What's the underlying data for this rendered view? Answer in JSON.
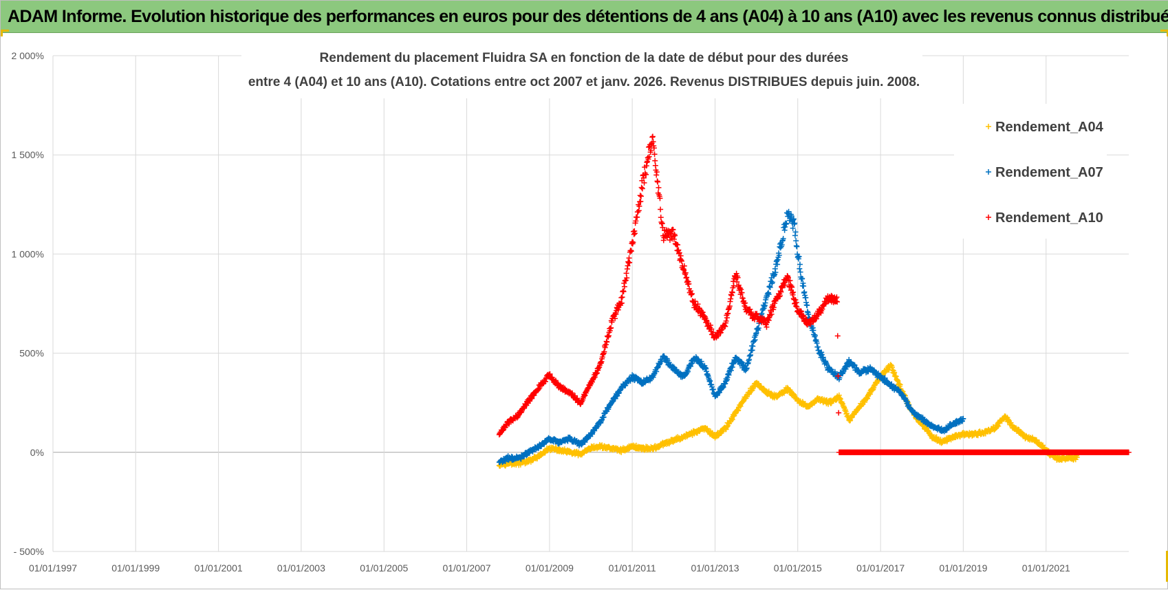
{
  "banner": {
    "title": "ADAM Informe. Evolution historique des performances en euros pour des détentions de 4 ans (A04) à 10 ans (A10) avec les revenus connus distribués",
    "color": "#8cc87e"
  },
  "chart_data": {
    "type": "scatter",
    "title_line1": "Rendement du placement Fluidra SA en fonction de la date de début pour des durées",
    "title_line2": "entre 4 (A04) et 10 ans (A10). Cotations entre oct 2007 et janv. 2026. Revenus DISTRIBUES depuis juin. 2008.",
    "xlabel": "",
    "ylabel": "",
    "x_range": [
      "01/01/1997",
      "01/01/2023"
    ],
    "ylim": [
      -500,
      2000
    ],
    "y_ticks": [
      {
        "value": 2000,
        "label": "2 000%"
      },
      {
        "value": 1500,
        "label": "1 500%"
      },
      {
        "value": 1000,
        "label": "1 000%"
      },
      {
        "value": 500,
        "label": "500%"
      },
      {
        "value": 0,
        "label": "0%"
      },
      {
        "value": -500,
        "label": "- 500%"
      }
    ],
    "x_ticks": [
      "01/01/1997",
      "01/01/1999",
      "01/01/2001",
      "01/01/2003",
      "01/01/2005",
      "01/01/2007",
      "01/01/2009",
      "01/01/2011",
      "01/01/2013",
      "01/01/2015",
      "01/01/2017",
      "01/01/2019",
      "01/01/2021"
    ],
    "grid": true,
    "legend_position": "top-right",
    "marker": "+",
    "series": [
      {
        "name": "Rendement_A04",
        "color": "#ffc000",
        "points": [
          [
            "2007-10-15",
            -60
          ],
          [
            "2008-01-01",
            -55
          ],
          [
            "2008-04-01",
            -55
          ],
          [
            "2008-07-01",
            -45
          ],
          [
            "2008-10-01",
            -20
          ],
          [
            "2009-01-01",
            20
          ],
          [
            "2009-04-01",
            10
          ],
          [
            "2009-07-01",
            0
          ],
          [
            "2009-10-01",
            -10
          ],
          [
            "2010-01-01",
            20
          ],
          [
            "2010-04-01",
            30
          ],
          [
            "2010-07-01",
            20
          ],
          [
            "2010-10-01",
            10
          ],
          [
            "2011-01-01",
            30
          ],
          [
            "2011-04-01",
            20
          ],
          [
            "2011-07-01",
            20
          ],
          [
            "2011-10-01",
            40
          ],
          [
            "2012-01-01",
            60
          ],
          [
            "2012-04-01",
            80
          ],
          [
            "2012-07-01",
            100
          ],
          [
            "2012-10-01",
            120
          ],
          [
            "2013-01-01",
            80
          ],
          [
            "2013-04-01",
            120
          ],
          [
            "2013-07-01",
            200
          ],
          [
            "2013-10-01",
            280
          ],
          [
            "2014-01-01",
            350
          ],
          [
            "2014-04-01",
            300
          ],
          [
            "2014-07-01",
            280
          ],
          [
            "2014-10-01",
            320
          ],
          [
            "2015-01-01",
            260
          ],
          [
            "2015-04-01",
            230
          ],
          [
            "2015-07-01",
            270
          ],
          [
            "2015-10-01",
            250
          ],
          [
            "2016-01-01",
            280
          ],
          [
            "2016-04-01",
            160
          ],
          [
            "2016-07-01",
            230
          ],
          [
            "2016-10-01",
            300
          ],
          [
            "2017-01-01",
            380
          ],
          [
            "2017-04-01",
            440
          ],
          [
            "2017-07-01",
            320
          ],
          [
            "2017-10-01",
            210
          ],
          [
            "2018-01-01",
            140
          ],
          [
            "2018-04-01",
            80
          ],
          [
            "2018-07-01",
            50
          ],
          [
            "2018-10-01",
            80
          ],
          [
            "2019-01-01",
            90
          ],
          [
            "2019-04-01",
            90
          ],
          [
            "2019-07-01",
            100
          ],
          [
            "2019-10-01",
            120
          ],
          [
            "2020-01-01",
            180
          ],
          [
            "2020-04-01",
            120
          ],
          [
            "2020-07-01",
            80
          ],
          [
            "2020-10-01",
            60
          ],
          [
            "2021-01-01",
            10
          ],
          [
            "2021-04-01",
            -30
          ],
          [
            "2021-07-01",
            -30
          ],
          [
            "2021-10-01",
            -25
          ]
        ]
      },
      {
        "name": "Rendement_A07",
        "color": "#0070c0",
        "points": [
          [
            "2007-10-15",
            -50
          ],
          [
            "2008-01-01",
            -30
          ],
          [
            "2008-04-01",
            -30
          ],
          [
            "2008-07-01",
            0
          ],
          [
            "2008-10-01",
            30
          ],
          [
            "2009-01-01",
            70
          ],
          [
            "2009-04-01",
            50
          ],
          [
            "2009-07-01",
            70
          ],
          [
            "2009-10-01",
            40
          ],
          [
            "2010-01-01",
            90
          ],
          [
            "2010-04-01",
            160
          ],
          [
            "2010-07-01",
            250
          ],
          [
            "2010-10-01",
            330
          ],
          [
            "2011-01-01",
            380
          ],
          [
            "2011-04-01",
            350
          ],
          [
            "2011-07-01",
            380
          ],
          [
            "2011-10-01",
            480
          ],
          [
            "2012-01-01",
            420
          ],
          [
            "2012-04-01",
            380
          ],
          [
            "2012-07-01",
            480
          ],
          [
            "2012-10-01",
            430
          ],
          [
            "2013-01-01",
            280
          ],
          [
            "2013-04-01",
            350
          ],
          [
            "2013-07-01",
            480
          ],
          [
            "2013-10-01",
            420
          ],
          [
            "2014-01-01",
            600
          ],
          [
            "2014-04-01",
            780
          ],
          [
            "2014-07-01",
            950
          ],
          [
            "2014-10-01",
            1200
          ],
          [
            "2014-12-01",
            1150
          ],
          [
            "2015-01-01",
            1000
          ],
          [
            "2015-04-01",
            700
          ],
          [
            "2015-07-01",
            520
          ],
          [
            "2015-10-01",
            420
          ],
          [
            "2016-01-01",
            380
          ],
          [
            "2016-04-01",
            460
          ],
          [
            "2016-07-01",
            400
          ],
          [
            "2016-10-01",
            420
          ],
          [
            "2017-01-01",
            380
          ],
          [
            "2017-04-01",
            340
          ],
          [
            "2017-07-01",
            300
          ],
          [
            "2017-10-01",
            210
          ],
          [
            "2018-01-01",
            170
          ],
          [
            "2018-04-01",
            130
          ],
          [
            "2018-07-01",
            110
          ],
          [
            "2018-10-01",
            140
          ],
          [
            "2019-01-01",
            170
          ]
        ]
      },
      {
        "name": "Rendement_A10",
        "color": "#ff0000",
        "points": [
          [
            "2007-10-15",
            90
          ],
          [
            "2008-01-01",
            150
          ],
          [
            "2008-04-01",
            190
          ],
          [
            "2008-07-01",
            260
          ],
          [
            "2008-10-01",
            330
          ],
          [
            "2009-01-01",
            390
          ],
          [
            "2009-04-01",
            330
          ],
          [
            "2009-07-01",
            300
          ],
          [
            "2009-10-01",
            250
          ],
          [
            "2010-01-01",
            350
          ],
          [
            "2010-04-01",
            450
          ],
          [
            "2010-07-01",
            650
          ],
          [
            "2010-10-01",
            770
          ],
          [
            "2011-01-01",
            1050
          ],
          [
            "2011-04-01",
            1350
          ],
          [
            "2011-07-01",
            1600
          ],
          [
            "2011-10-01",
            1100
          ],
          [
            "2012-01-01",
            1100
          ],
          [
            "2012-04-01",
            920
          ],
          [
            "2012-07-01",
            750
          ],
          [
            "2012-10-01",
            680
          ],
          [
            "2013-01-01",
            580
          ],
          [
            "2013-04-01",
            640
          ],
          [
            "2013-07-01",
            900
          ],
          [
            "2013-10-01",
            720
          ],
          [
            "2014-01-01",
            680
          ],
          [
            "2014-04-01",
            650
          ],
          [
            "2014-07-01",
            780
          ],
          [
            "2014-10-01",
            890
          ],
          [
            "2015-01-01",
            720
          ],
          [
            "2015-04-01",
            650
          ],
          [
            "2015-07-01",
            700
          ],
          [
            "2015-10-01",
            780
          ],
          [
            "2015-12-15",
            770
          ],
          [
            "2016-01-01",
            0
          ],
          [
            "2017-01-01",
            0
          ],
          [
            "2018-01-01",
            0
          ],
          [
            "2019-01-01",
            0
          ],
          [
            "2020-01-01",
            0
          ],
          [
            "2021-01-01",
            0
          ],
          [
            "2022-01-01",
            0
          ],
          [
            "2022-12-31",
            0
          ]
        ]
      }
    ]
  }
}
